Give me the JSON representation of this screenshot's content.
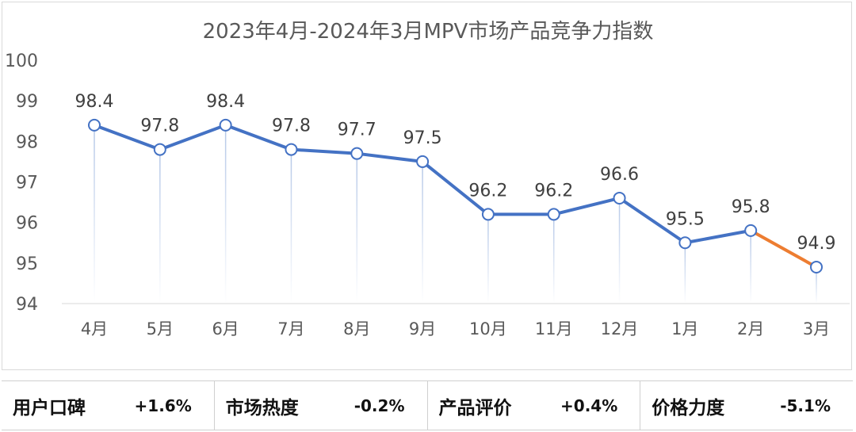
{
  "chart_data": {
    "type": "line",
    "title": "2023年4月-2024年3月MPV市场产品竞争力指数",
    "categories": [
      "4月",
      "5月",
      "6月",
      "7月",
      "8月",
      "9月",
      "10月",
      "11月",
      "12月",
      "1月",
      "2月",
      "3月"
    ],
    "series": [
      {
        "values": [
          98.4,
          97.8,
          98.4,
          97.8,
          97.7,
          97.5,
          96.2,
          96.2,
          96.6,
          95.5,
          95.8,
          94.9
        ]
      }
    ],
    "data_labels": [
      "98.4",
      "97.8",
      "98.4",
      "97.8",
      "97.7",
      "97.5",
      "96.2",
      "96.2",
      "96.6",
      "95.5",
      "95.8",
      "94.9"
    ],
    "ylim": [
      94,
      100
    ],
    "yticks": [
      94,
      95,
      96,
      97,
      98,
      99,
      100
    ],
    "grid": false,
    "colors": {
      "line": "#4472c4",
      "last_segment": "#ed7d31",
      "droplines": "#b4c7e7"
    }
  },
  "stats": [
    {
      "label": "用户口碑",
      "value": "+1.6%"
    },
    {
      "label": "市场热度",
      "value": "-0.2%"
    },
    {
      "label": "产品评价",
      "value": "+0.4%"
    },
    {
      "label": "价格力度",
      "value": "-5.1%"
    }
  ]
}
